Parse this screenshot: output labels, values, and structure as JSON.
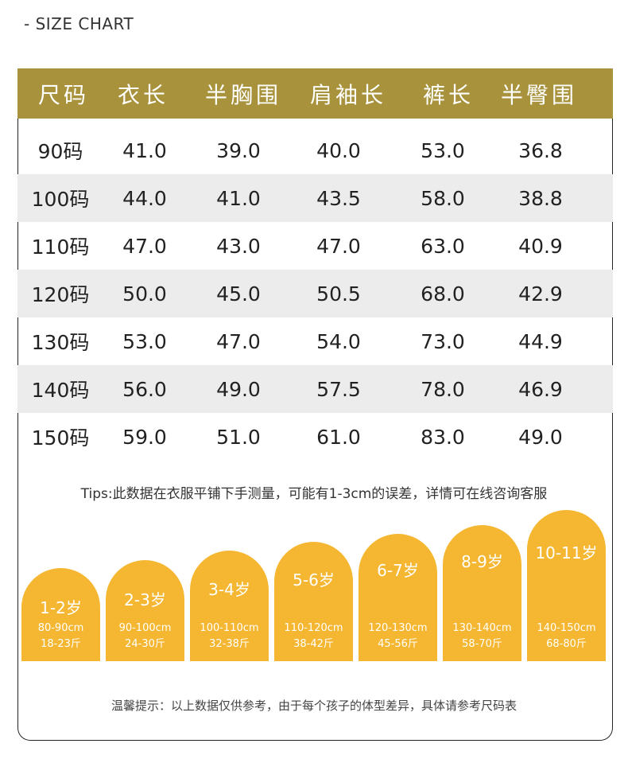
{
  "title": "- SIZE CHART",
  "table": {
    "headers": [
      "尺码",
      "衣长",
      "半胸围",
      "肩袖长",
      "裤长",
      "半臀围"
    ],
    "rows": [
      [
        "90码",
        "41.0",
        "39.0",
        "40.0",
        "53.0",
        "36.8"
      ],
      [
        "100码",
        "44.0",
        "41.0",
        "43.5",
        "58.0",
        "38.8"
      ],
      [
        "110码",
        "47.0",
        "43.0",
        "47.0",
        "63.0",
        "40.9"
      ],
      [
        "120码",
        "50.0",
        "45.0",
        "50.5",
        "68.0",
        "42.9"
      ],
      [
        "130码",
        "53.0",
        "47.0",
        "54.0",
        "73.0",
        "44.9"
      ],
      [
        "140码",
        "56.0",
        "49.0",
        "57.5",
        "78.0",
        "46.9"
      ],
      [
        "150码",
        "59.0",
        "51.0",
        "61.0",
        "83.0",
        "49.0"
      ]
    ]
  },
  "tips": "Tips:此数据在衣服平铺下手测量，可能有1-3cm的误差，详情可在线咨询客服",
  "age_guide": [
    {
      "age": "1-2岁",
      "height": "80-90cm",
      "weight": "18-23斤"
    },
    {
      "age": "2-3岁",
      "height": "90-100cm",
      "weight": "24-30斤"
    },
    {
      "age": "3-4岁",
      "height": "100-110cm",
      "weight": "32-38斤"
    },
    {
      "age": "5-6岁",
      "height": "110-120cm",
      "weight": "38-42斤"
    },
    {
      "age": "6-7岁",
      "height": "120-130cm",
      "weight": "45-56斤"
    },
    {
      "age": "8-9岁",
      "height": "130-140cm",
      "weight": "58-70斤"
    },
    {
      "age": "10-11岁",
      "height": "140-150cm",
      "weight": "68-80斤"
    }
  ],
  "note": "温馨提示：以上数据仅供参考，由于每个孩子的体型差异，具体请参考尺码表",
  "colors": {
    "header_bg": "#a8923c",
    "tile_bg": "#f5b731",
    "alt_row_bg": "#ececec"
  }
}
